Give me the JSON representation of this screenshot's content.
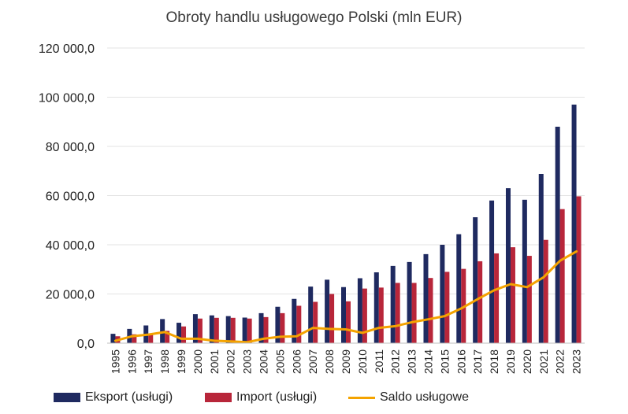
{
  "chart_data": {
    "type": "bar",
    "title": "Obroty handlu usługowego Polski (mln EUR)",
    "xlabel": "",
    "ylabel": "",
    "ylim": [
      0,
      120000
    ],
    "yticks": [
      "0,0",
      "20 000,0",
      "40 000,0",
      "60 000,0",
      "80 000,0",
      "100 000,0",
      "120 000,0"
    ],
    "grid": true,
    "legend_position": "bottom",
    "categories": [
      "1995",
      "1996",
      "1997",
      "1998",
      "1999",
      "2000",
      "2001",
      "2002",
      "2003",
      "2004",
      "2005",
      "2006",
      "2007",
      "2008",
      "2009",
      "2010",
      "2011",
      "2012",
      "2013",
      "2014",
      "2015",
      "2016",
      "2017",
      "2018",
      "2019",
      "2020",
      "2021",
      "2022",
      "2023"
    ],
    "series": [
      {
        "name": "Eksport (usługi)",
        "kind": "bar",
        "color": "#1f2a60",
        "values": [
          3800,
          5800,
          7200,
          9800,
          8300,
          11800,
          11300,
          11000,
          10400,
          12200,
          14800,
          18000,
          23000,
          25800,
          22800,
          26400,
          28800,
          31400,
          33000,
          36200,
          40000,
          44300,
          51200,
          58000,
          63000,
          58300,
          68800,
          88000,
          97000
        ]
      },
      {
        "name": "Import (usługi)",
        "kind": "bar",
        "color": "#b8263a",
        "values": [
          2800,
          3600,
          3500,
          5000,
          6800,
          10000,
          10300,
          10300,
          10000,
          10600,
          12200,
          15200,
          16800,
          20000,
          17000,
          22200,
          22600,
          24500,
          24500,
          26500,
          29000,
          30200,
          33300,
          36500,
          39000,
          35500,
          42000,
          54500,
          59700
        ]
      },
      {
        "name": "Saldo usługowe",
        "kind": "line",
        "color": "#f4a300",
        "values": [
          1000,
          2800,
          3500,
          4500,
          1800,
          1800,
          1000,
          700,
          400,
          1800,
          2600,
          2800,
          6200,
          5800,
          5600,
          4200,
          6200,
          6900,
          8500,
          9700,
          11000,
          14100,
          17900,
          21500,
          24000,
          22800,
          26800,
          33500,
          37300
        ]
      }
    ]
  }
}
